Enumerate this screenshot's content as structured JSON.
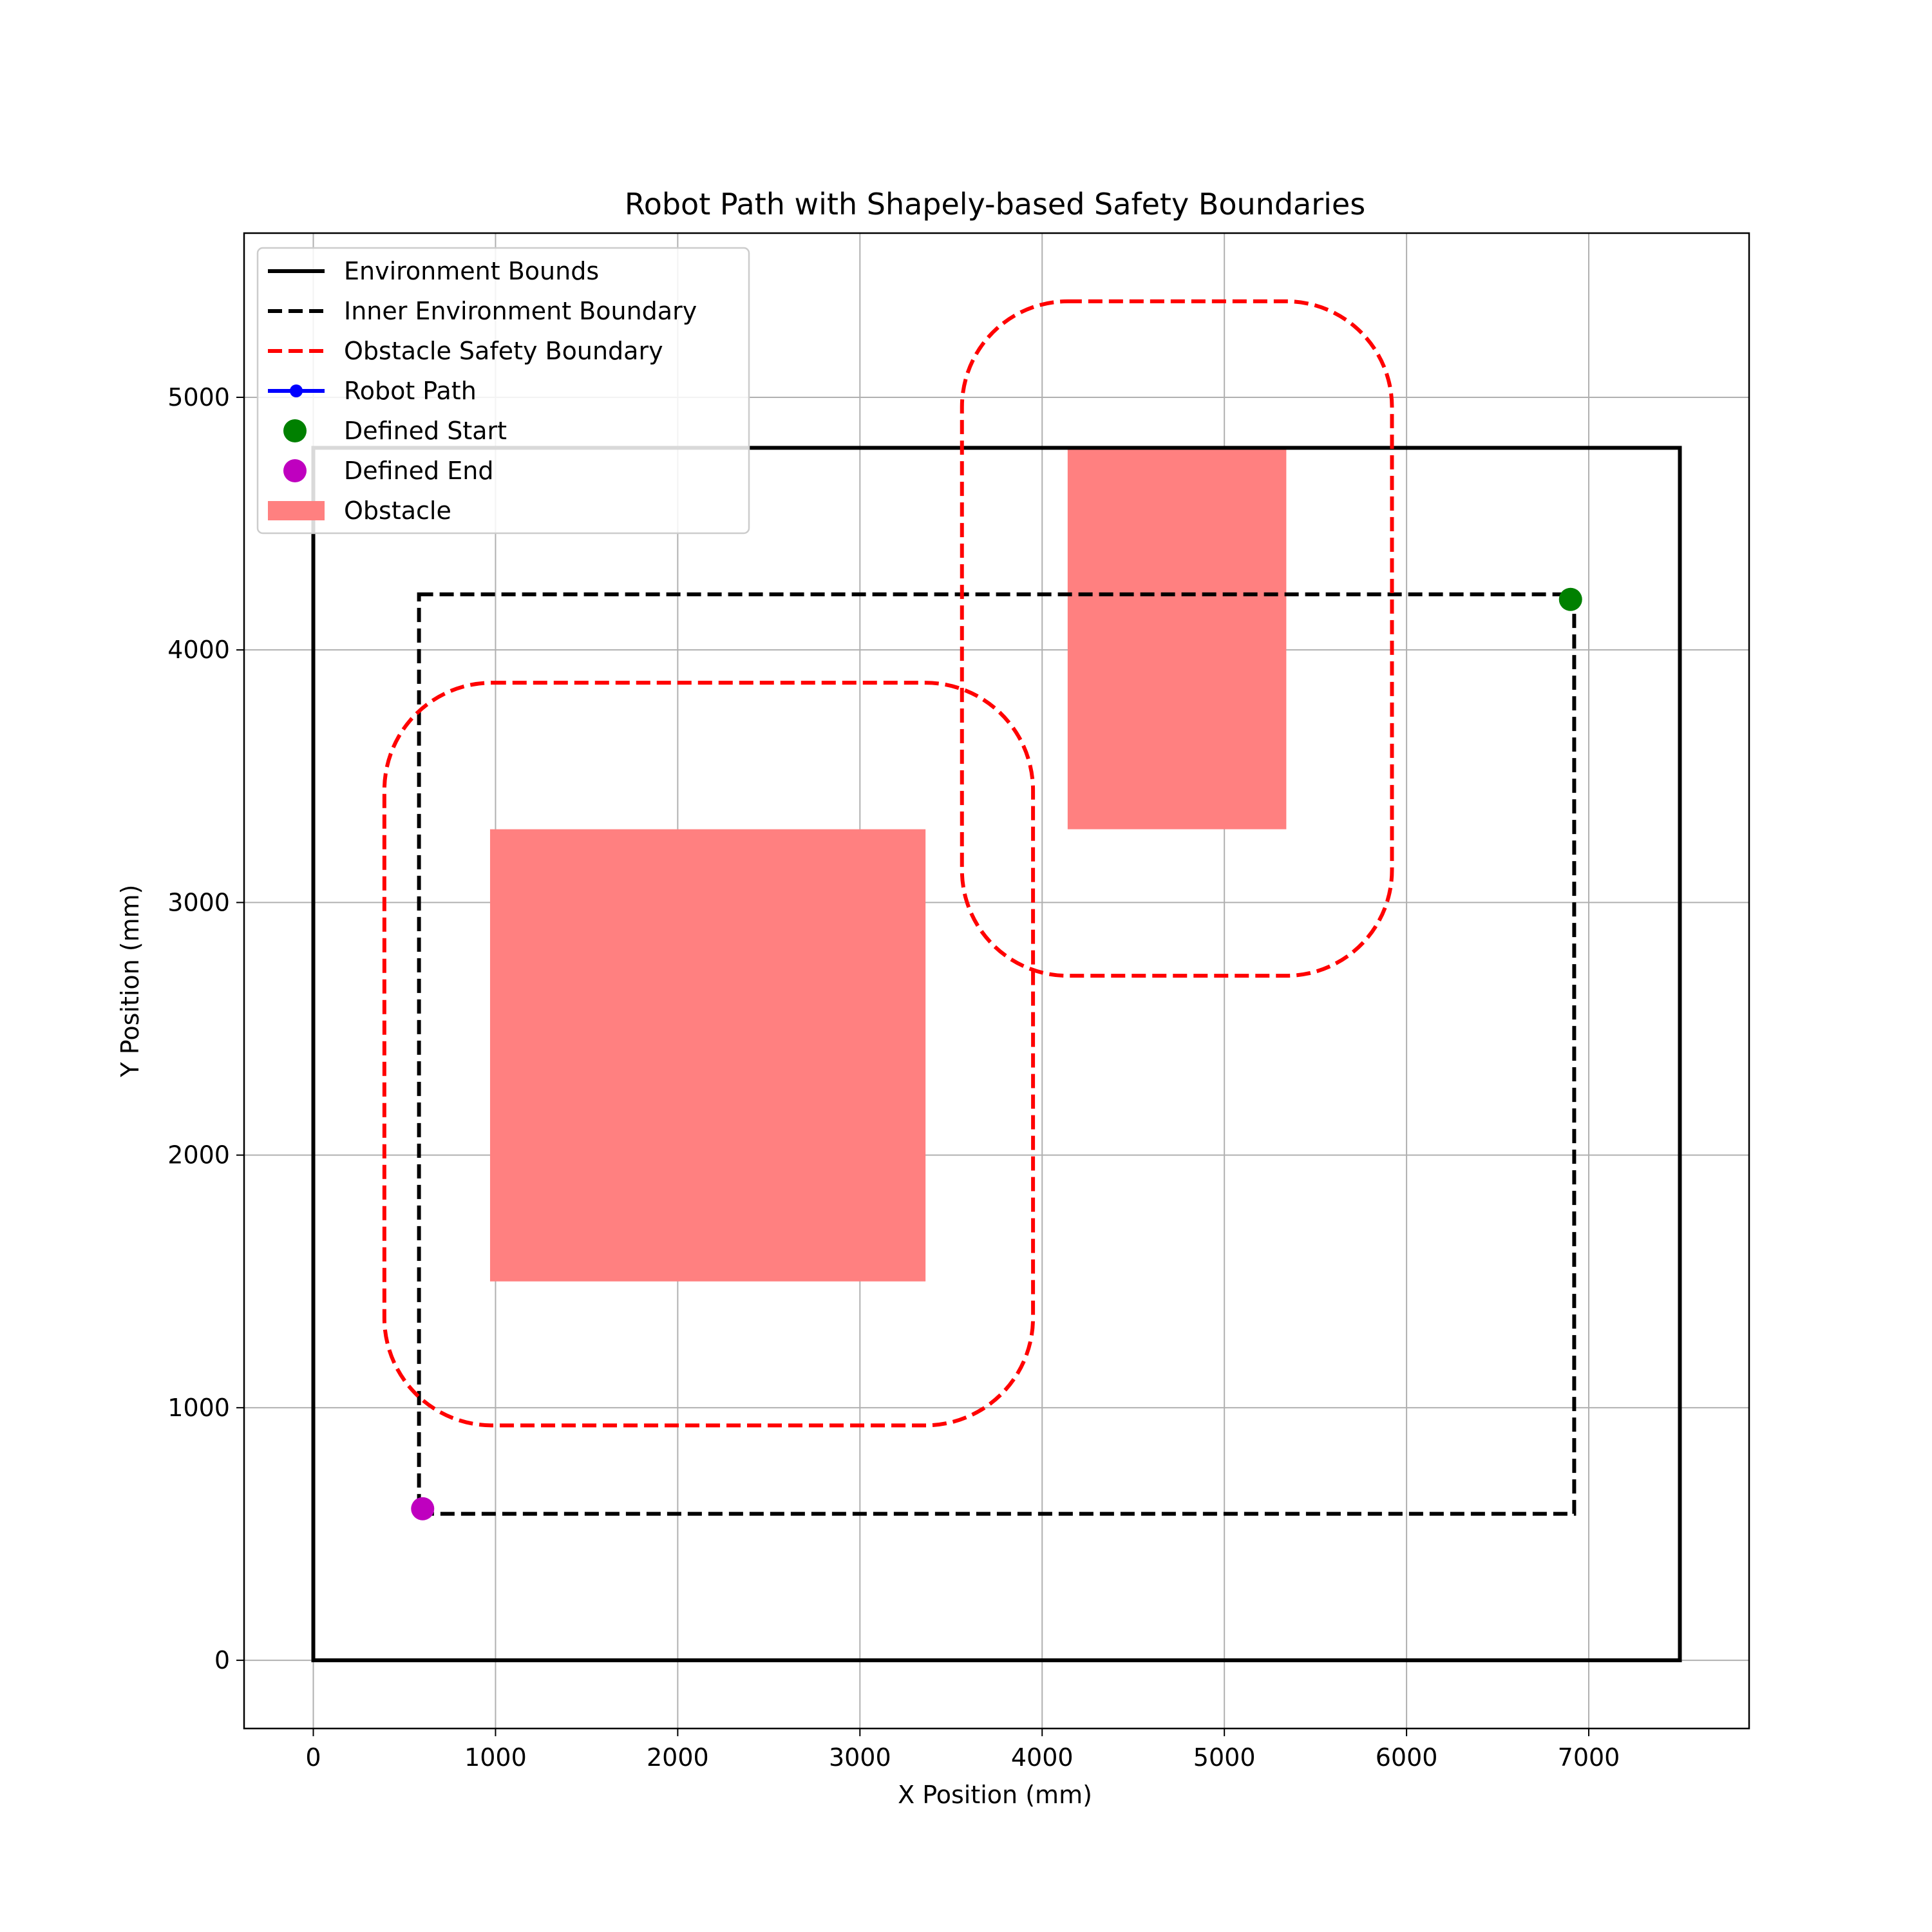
{
  "chart_data": {
    "type": "line",
    "title": "Robot Path with Shapely-based Safety Boundaries",
    "xlabel": "X Position (mm)",
    "ylabel": "Y Position (mm)",
    "xlim": [
      -380,
      7880
    ],
    "ylim": [
      -270,
      5650
    ],
    "xticks": [
      0,
      1000,
      2000,
      3000,
      4000,
      5000,
      6000,
      7000
    ],
    "yticks": [
      0,
      1000,
      2000,
      3000,
      4000,
      5000
    ],
    "grid": true,
    "legend_position": "top-left",
    "legend": [
      {
        "label": "Environment Bounds",
        "kind": "line",
        "color": "#000000",
        "dash": "solid"
      },
      {
        "label": "Inner Environment Boundary",
        "kind": "line",
        "color": "#000000",
        "dash": "dashed"
      },
      {
        "label": "Obstacle Safety Boundary",
        "kind": "line",
        "color": "#ff0000",
        "dash": "dashed"
      },
      {
        "label": "Robot Path",
        "kind": "line-marker",
        "color": "#0000ff",
        "dash": "solid"
      },
      {
        "label": "Defined Start",
        "kind": "marker",
        "color": "#008000"
      },
      {
        "label": "Defined End",
        "kind": "marker",
        "color": "#bf00bf"
      },
      {
        "label": "Obstacle",
        "kind": "patch",
        "color": "#ff8080"
      }
    ],
    "environment_bounds": {
      "x": [
        0,
        7500
      ],
      "y": [
        0,
        4800
      ],
      "color": "#000000"
    },
    "inner_boundary": {
      "x": [
        580,
        6920
      ],
      "y": [
        580,
        4220
      ],
      "color": "#000000"
    },
    "obstacles": [
      {
        "x": [
          970,
          3360
        ],
        "y": [
          1500,
          3290
        ],
        "color": "#ff8080"
      },
      {
        "x": [
          4140,
          5340
        ],
        "y": [
          3290,
          4800
        ],
        "color": "#ff8080"
      }
    ],
    "safety_boundaries": [
      {
        "x": [
          390,
          3950
        ],
        "y": [
          930,
          3870
        ],
        "corner_radius": 590,
        "color": "#ff0000"
      },
      {
        "x": [
          3560,
          5920
        ],
        "y": [
          2710,
          5380
        ],
        "corner_radius": 580,
        "color": "#ff0000"
      }
    ],
    "robot_path": {
      "x": [],
      "y": [],
      "color": "#0000ff"
    },
    "defined_start": {
      "x": 6900,
      "y": 4200,
      "color": "#008000"
    },
    "defined_end": {
      "x": 600,
      "y": 600,
      "color": "#bf00bf"
    }
  }
}
